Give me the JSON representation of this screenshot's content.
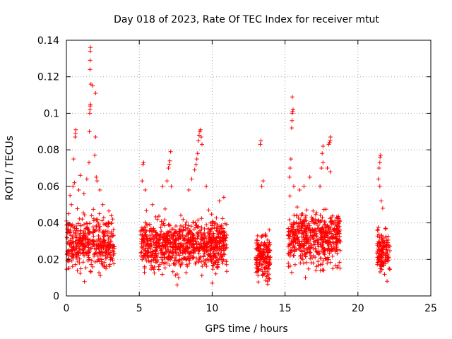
{
  "chart_data": {
    "type": "scatter",
    "title": "Day 018 of 2023, Rate Of TEC Index for receiver mtut",
    "xlabel": "GPS time / hours",
    "ylabel": "ROTI / TECUs",
    "xlim": [
      0,
      25
    ],
    "ylim": [
      0,
      0.14
    ],
    "x_ticks": [
      0,
      5,
      10,
      15,
      20,
      25
    ],
    "y_ticks": [
      0,
      0.02,
      0.04,
      0.06,
      0.08,
      0.1,
      0.12,
      0.14
    ],
    "x_tick_labels": [
      "0",
      "5",
      "10",
      "15",
      "20",
      "25"
    ],
    "y_tick_labels": [
      "0",
      "0.02",
      "0.04",
      "0.06",
      "0.08",
      "0.1",
      "0.12",
      "0.14"
    ],
    "grid": true,
    "marker": "plus",
    "colors": {
      "points": "#ff0000",
      "grid": "#a0a0a0",
      "axes": "#000000"
    },
    "clusters": [
      {
        "x_range": [
          0.0,
          3.3
        ],
        "y_center": 0.028,
        "y_spread": 0.012,
        "count": 420
      },
      {
        "x_range": [
          5.1,
          7.4
        ],
        "y_center": 0.028,
        "y_spread": 0.011,
        "count": 320
      },
      {
        "x_range": [
          7.4,
          11.0
        ],
        "y_center": 0.028,
        "y_spread": 0.011,
        "count": 520
      },
      {
        "x_range": [
          13.0,
          14.0
        ],
        "y_center": 0.022,
        "y_spread": 0.01,
        "count": 170
      },
      {
        "x_range": [
          15.2,
          18.8
        ],
        "y_center": 0.032,
        "y_spread": 0.012,
        "count": 520
      },
      {
        "x_range": [
          21.3,
          22.2
        ],
        "y_center": 0.024,
        "y_spread": 0.01,
        "count": 130
      }
    ],
    "points": [
      {
        "x": 0.15,
        "y": 0.045
      },
      {
        "x": 0.25,
        "y": 0.055
      },
      {
        "x": 0.35,
        "y": 0.05
      },
      {
        "x": 0.45,
        "y": 0.06
      },
      {
        "x": 0.55,
        "y": 0.062
      },
      {
        "x": 0.5,
        "y": 0.075
      },
      {
        "x": 0.6,
        "y": 0.087
      },
      {
        "x": 0.62,
        "y": 0.089
      },
      {
        "x": 0.65,
        "y": 0.091
      },
      {
        "x": 0.85,
        "y": 0.058
      },
      {
        "x": 0.95,
        "y": 0.066
      },
      {
        "x": 1.2,
        "y": 0.056
      },
      {
        "x": 1.4,
        "y": 0.064
      },
      {
        "x": 1.55,
        "y": 0.073
      },
      {
        "x": 1.58,
        "y": 0.09
      },
      {
        "x": 1.6,
        "y": 0.1
      },
      {
        "x": 1.62,
        "y": 0.102
      },
      {
        "x": 1.64,
        "y": 0.104
      },
      {
        "x": 1.65,
        "y": 0.105
      },
      {
        "x": 1.68,
        "y": 0.116
      },
      {
        "x": 1.62,
        "y": 0.124
      },
      {
        "x": 1.63,
        "y": 0.129
      },
      {
        "x": 1.64,
        "y": 0.134
      },
      {
        "x": 1.65,
        "y": 0.136
      },
      {
        "x": 1.8,
        "y": 0.115
      },
      {
        "x": 2.0,
        "y": 0.111
      },
      {
        "x": 2.0,
        "y": 0.087
      },
      {
        "x": 1.95,
        "y": 0.077
      },
      {
        "x": 2.05,
        "y": 0.065
      },
      {
        "x": 2.1,
        "y": 0.063
      },
      {
        "x": 2.3,
        "y": 0.058
      },
      {
        "x": 2.5,
        "y": 0.05
      },
      {
        "x": 5.2,
        "y": 0.063
      },
      {
        "x": 5.25,
        "y": 0.072
      },
      {
        "x": 5.3,
        "y": 0.073
      },
      {
        "x": 5.4,
        "y": 0.058
      },
      {
        "x": 5.9,
        "y": 0.05
      },
      {
        "x": 6.6,
        "y": 0.06
      },
      {
        "x": 6.9,
        "y": 0.063
      },
      {
        "x": 7.0,
        "y": 0.07
      },
      {
        "x": 7.05,
        "y": 0.072
      },
      {
        "x": 7.1,
        "y": 0.074
      },
      {
        "x": 7.15,
        "y": 0.079
      },
      {
        "x": 7.2,
        "y": 0.06
      },
      {
        "x": 7.6,
        "y": 0.006
      },
      {
        "x": 7.7,
        "y": 0.01
      },
      {
        "x": 8.4,
        "y": 0.058
      },
      {
        "x": 8.6,
        "y": 0.064
      },
      {
        "x": 8.8,
        "y": 0.069
      },
      {
        "x": 8.9,
        "y": 0.072
      },
      {
        "x": 8.95,
        "y": 0.075
      },
      {
        "x": 9.0,
        "y": 0.078
      },
      {
        "x": 9.05,
        "y": 0.085
      },
      {
        "x": 9.1,
        "y": 0.088
      },
      {
        "x": 9.15,
        "y": 0.09
      },
      {
        "x": 9.2,
        "y": 0.091
      },
      {
        "x": 9.25,
        "y": 0.087
      },
      {
        "x": 9.3,
        "y": 0.083
      },
      {
        "x": 9.6,
        "y": 0.06
      },
      {
        "x": 10.0,
        "y": 0.007
      },
      {
        "x": 10.5,
        "y": 0.052
      },
      {
        "x": 10.8,
        "y": 0.054
      },
      {
        "x": 13.3,
        "y": 0.083
      },
      {
        "x": 13.35,
        "y": 0.085
      },
      {
        "x": 13.4,
        "y": 0.06
      },
      {
        "x": 13.5,
        "y": 0.063
      },
      {
        "x": 13.8,
        "y": 0.008
      },
      {
        "x": 15.3,
        "y": 0.065
      },
      {
        "x": 15.35,
        "y": 0.07
      },
      {
        "x": 15.4,
        "y": 0.075
      },
      {
        "x": 15.45,
        "y": 0.092
      },
      {
        "x": 15.48,
        "y": 0.096
      },
      {
        "x": 15.5,
        "y": 0.1
      },
      {
        "x": 15.52,
        "y": 0.101
      },
      {
        "x": 15.55,
        "y": 0.102
      },
      {
        "x": 15.5,
        "y": 0.109
      },
      {
        "x": 15.6,
        "y": 0.06
      },
      {
        "x": 16.0,
        "y": 0.058
      },
      {
        "x": 16.3,
        "y": 0.06
      },
      {
        "x": 16.7,
        "y": 0.065
      },
      {
        "x": 16.4,
        "y": 0.01
      },
      {
        "x": 17.4,
        "y": 0.06
      },
      {
        "x": 17.5,
        "y": 0.07
      },
      {
        "x": 17.6,
        "y": 0.073
      },
      {
        "x": 17.55,
        "y": 0.078
      },
      {
        "x": 17.6,
        "y": 0.082
      },
      {
        "x": 18.0,
        "y": 0.083
      },
      {
        "x": 18.05,
        "y": 0.084
      },
      {
        "x": 18.1,
        "y": 0.085
      },
      {
        "x": 18.12,
        "y": 0.087
      },
      {
        "x": 17.9,
        "y": 0.07
      },
      {
        "x": 18.1,
        "y": 0.068
      },
      {
        "x": 21.4,
        "y": 0.064
      },
      {
        "x": 21.45,
        "y": 0.07
      },
      {
        "x": 21.5,
        "y": 0.073
      },
      {
        "x": 21.52,
        "y": 0.076
      },
      {
        "x": 21.55,
        "y": 0.077
      },
      {
        "x": 21.5,
        "y": 0.06
      },
      {
        "x": 21.6,
        "y": 0.052
      },
      {
        "x": 21.7,
        "y": 0.048
      },
      {
        "x": 22.0,
        "y": 0.008
      }
    ]
  }
}
